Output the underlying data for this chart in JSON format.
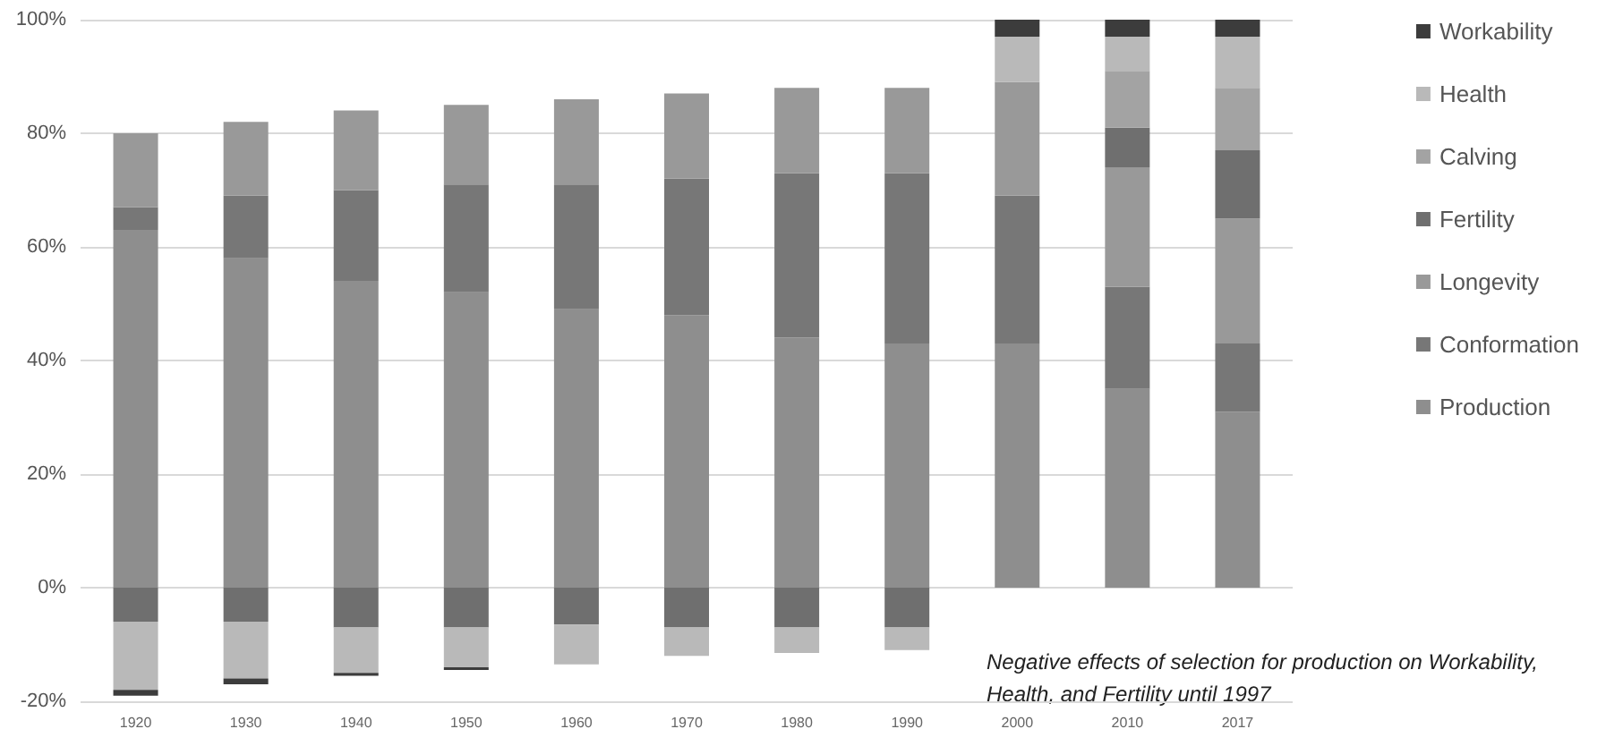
{
  "chart_data": {
    "type": "bar",
    "stacked": true,
    "categories": [
      "1920",
      "1930",
      "1940",
      "1950",
      "1960",
      "1970",
      "1980",
      "1990",
      "2000",
      "2010",
      "2017"
    ],
    "series": [
      {
        "name": "Production",
        "color": "#8e8e8e",
        "values": [
          63,
          58,
          54,
          52,
          49,
          48,
          44,
          43,
          43,
          35,
          31
        ]
      },
      {
        "name": "Conformation",
        "color": "#777777",
        "values": [
          4,
          11,
          16,
          19,
          22,
          24,
          29,
          30,
          26,
          18,
          12
        ]
      },
      {
        "name": "Longevity",
        "color": "#999999",
        "values": [
          13,
          13,
          14,
          14,
          15,
          15,
          15,
          15,
          20,
          21,
          22
        ]
      },
      {
        "name": "Fertility",
        "color": "#6f6f6f",
        "values": [
          -6,
          -6,
          -7,
          -7,
          -6.5,
          -7,
          -7,
          -7,
          null,
          7,
          12
        ]
      },
      {
        "name": "Calving",
        "color": "#a3a3a3",
        "values": [
          null,
          null,
          null,
          null,
          null,
          null,
          null,
          null,
          null,
          10,
          11
        ]
      },
      {
        "name": "Health",
        "color": "#b9b9b9",
        "values": [
          -12,
          -10,
          -8,
          -7,
          -7,
          -5,
          -4.5,
          -4,
          8,
          6,
          9
        ]
      },
      {
        "name": "Workability",
        "color": "#3c3c3c",
        "values": [
          -1,
          -1,
          -0.5,
          -0.5,
          null,
          null,
          null,
          null,
          3,
          3,
          3
        ]
      }
    ],
    "ylim": [
      -20,
      100
    ],
    "yticks": [
      {
        "value": -20,
        "label": "-20%"
      },
      {
        "value": 0,
        "label": "0%"
      },
      {
        "value": 20,
        "label": "20%"
      },
      {
        "value": 40,
        "label": "40%"
      },
      {
        "value": 60,
        "label": "60%"
      },
      {
        "value": 80,
        "label": "80%"
      },
      {
        "value": 100,
        "label": "100%"
      }
    ],
    "grid": "y",
    "legend": "right",
    "annotations": [
      "Negative effects of selection for production on Workability, Health, and Fertility until 1997"
    ]
  }
}
